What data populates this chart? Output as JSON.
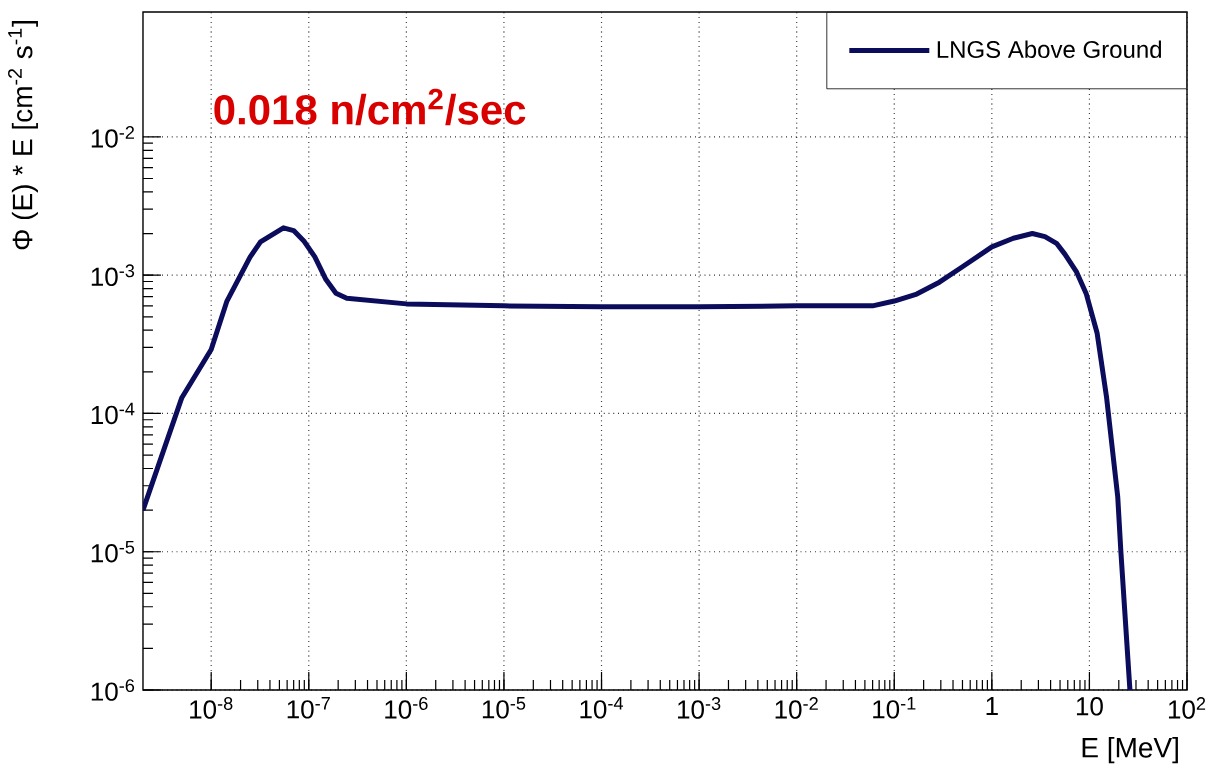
{
  "chart_data": {
    "type": "line",
    "xlabel": "E [MeV]",
    "ylabel": "Φ (E) * E [cm$^{-2}$ s$^{-1}$]",
    "annotations": [
      "0.018 n/cm$^{2}$/sec"
    ],
    "x": [
      2e-09,
      5e-09,
      1e-08,
      1.45e-08,
      2.5e-08,
      3.2e-08,
      5.5e-08,
      7e-08,
      9e-08,
      1.15e-07,
      1.5e-07,
      1.9e-07,
      2.45e-07,
      1e-06,
      1e-05,
      0.0001,
      0.001,
      0.01,
      0.03,
      0.06,
      0.1,
      0.17,
      0.29,
      0.5,
      1,
      1.66,
      2.6,
      3.5,
      4.6,
      5.6,
      7.4,
      9.3,
      12,
      15,
      19.5,
      21,
      26
    ],
    "series": [
      {
        "name": "LNGS Above Ground",
        "color": "#0c0c5c",
        "values": [
          2e-05,
          0.00013,
          0.00029,
          0.00065,
          0.00135,
          0.00174,
          0.0022,
          0.0021,
          0.00175,
          0.00136,
          0.00093,
          0.00074,
          0.00068,
          0.00062,
          0.0006,
          0.00059,
          0.00059,
          0.0006,
          0.0006,
          0.0006,
          0.00065,
          0.00073,
          0.00089,
          0.00115,
          0.0016,
          0.00185,
          0.002,
          0.0019,
          0.0017,
          0.00142,
          0.00105,
          0.00073,
          0.00038,
          0.00013,
          2.5e-05,
          1e-05,
          1e-06
        ]
      }
    ],
    "xlim": [
      2e-09,
      100
    ],
    "ylim": [
      1e-06,
      0.08
    ],
    "xticks": [
      {
        "value": 1e-08,
        "label": "10$^{-8}$"
      },
      {
        "value": 1e-07,
        "label": "10$^{-7}$"
      },
      {
        "value": 1e-06,
        "label": "10$^{-6}$"
      },
      {
        "value": 1e-05,
        "label": "10$^{-5}$"
      },
      {
        "value": 0.0001,
        "label": "10$^{-4}$"
      },
      {
        "value": 0.001,
        "label": "10$^{-3}$"
      },
      {
        "value": 0.01,
        "label": "10$^{-2}$"
      },
      {
        "value": 0.1,
        "label": "10$^{-1}$"
      },
      1,
      10,
      {
        "value": 100,
        "label": "10$^{2}$"
      }
    ],
    "yticks": [
      {
        "value": 1e-06,
        "label": "10$^{-6}$"
      },
      {
        "value": 1e-05,
        "label": "10$^{-5}$"
      },
      {
        "value": 0.0001,
        "label": "10$^{-4}$"
      },
      {
        "value": 0.001,
        "label": "10$^{-3}$"
      },
      {
        "value": 0.01,
        "label": "10$^{-2}$"
      }
    ],
    "log": "xy",
    "grid": true,
    "legend": "top right",
    "line_style": "solid"
  }
}
